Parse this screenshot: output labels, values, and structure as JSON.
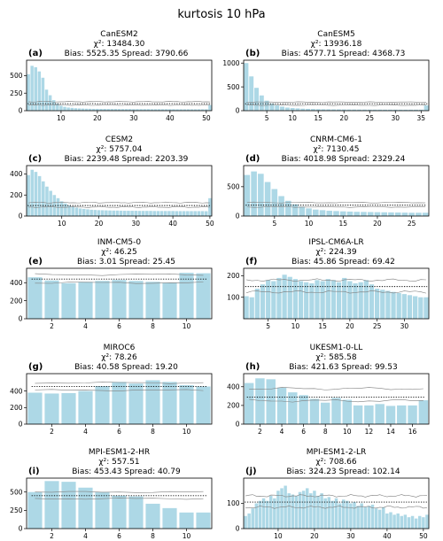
{
  "figure": {
    "title": "kurtosis 10 hPa"
  },
  "style": {
    "bar_color": "#add8e6",
    "line_color": "#000000",
    "band_color": "#7f7f7f"
  },
  "chart_data": [
    {
      "type": "bar",
      "label": "(a)",
      "model": "CanESM2",
      "chi2_text": "χ²: 13484.30",
      "stats_text": "Bias: 5525.35  Spread: 3790.66",
      "ylim": [
        0,
        720
      ],
      "yticks": [
        0,
        250,
        500
      ],
      "xlim": [
        0.5,
        51.5
      ],
      "xticks": [
        10,
        20,
        30,
        40,
        50
      ],
      "values": [
        520,
        640,
        620,
        560,
        470,
        300,
        220,
        150,
        100,
        70,
        55,
        45,
        40,
        35,
        32,
        30,
        28,
        27,
        26,
        26,
        25,
        25,
        24,
        24,
        24,
        23,
        23,
        23,
        23,
        22,
        22,
        22,
        22,
        22,
        21,
        21,
        21,
        21,
        21,
        21,
        21,
        20,
        20,
        20,
        20,
        20,
        20,
        20,
        20,
        20,
        80
      ],
      "expected": 100,
      "band": [
        80,
        128
      ]
    },
    {
      "type": "bar",
      "label": "(b)",
      "model": "CanESM5",
      "chi2_text": "χ²: 13936.18",
      "stats_text": "Bias: 4577.71  Spread: 4368.73",
      "ylim": [
        0,
        1060
      ],
      "yticks": [
        0,
        500,
        1000
      ],
      "xlim": [
        0.5,
        36.5
      ],
      "xticks": [
        5,
        10,
        15,
        20,
        25,
        30,
        35
      ],
      "values": [
        1000,
        720,
        480,
        320,
        210,
        150,
        110,
        85,
        65,
        55,
        48,
        42,
        38,
        35,
        32,
        30,
        29,
        28,
        27,
        26,
        25,
        25,
        24,
        24,
        23,
        23,
        23,
        22,
        22,
        22,
        21,
        21,
        21,
        21,
        21,
        110
      ],
      "expected": 145,
      "band": [
        115,
        180
      ]
    },
    {
      "type": "bar",
      "label": "(c)",
      "model": "CESM2",
      "chi2_text": "χ²: 5757.04",
      "stats_text": "Bias: 2239.48  Spread: 2203.39",
      "ylim": [
        0,
        480
      ],
      "yticks": [
        0,
        200,
        400
      ],
      "xlim": [
        0.5,
        50.5
      ],
      "xticks": [
        10,
        20,
        30,
        40,
        50
      ],
      "values": [
        390,
        440,
        420,
        380,
        330,
        280,
        240,
        200,
        170,
        140,
        120,
        100,
        90,
        80,
        72,
        68,
        64,
        60,
        58,
        56,
        55,
        54,
        53,
        52,
        52,
        51,
        50,
        50,
        50,
        50,
        49,
        49,
        49,
        49,
        48,
        48,
        48,
        48,
        48,
        48,
        47,
        47,
        47,
        47,
        47,
        47,
        47,
        47,
        46,
        170
      ],
      "expected": 100,
      "band": [
        85,
        128
      ]
    },
    {
      "type": "bar",
      "label": "(d)",
      "model": "CNRM-CM6-1",
      "chi2_text": "χ²: 7130.45",
      "stats_text": "Bias: 4018.98  Spread: 2329.24",
      "ylim": [
        0,
        860
      ],
      "yticks": [
        0,
        500
      ],
      "xlim": [
        0.5,
        27.5
      ],
      "xticks": [
        5,
        10,
        15,
        20,
        25
      ],
      "values": [
        700,
        760,
        720,
        580,
        460,
        340,
        260,
        200,
        160,
        130,
        110,
        100,
        90,
        85,
        80,
        76,
        72,
        70,
        68,
        66,
        64,
        62,
        60,
        58,
        56,
        56,
        56
      ],
      "expected": 185,
      "band": [
        155,
        230
      ]
    },
    {
      "type": "bar",
      "label": "(e)",
      "model": "INM-CM5-0",
      "chi2_text": "χ²: 46.25",
      "stats_text": "Bias: 3.01  Spread: 25.45",
      "ylim": [
        0,
        560
      ],
      "yticks": [
        0,
        200,
        400
      ],
      "xlim": [
        0.5,
        11.5
      ],
      "xticks": [
        2,
        4,
        6,
        8,
        10
      ],
      "values": [
        460,
        425,
        395,
        410,
        420,
        430,
        420,
        410,
        400,
        510,
        505
      ],
      "expected": 440,
      "band": [
        400,
        490
      ]
    },
    {
      "type": "bar",
      "label": "(f)",
      "model": "IPSL-CM6A-LR",
      "chi2_text": "χ²: 224.39",
      "stats_text": "Bias: 45.86  Spread: 69.42",
      "ylim": [
        0,
        235
      ],
      "yticks": [
        100,
        200
      ],
      "xlim": [
        0.5,
        34.5
      ],
      "xticks": [
        5,
        10,
        15,
        20,
        25,
        30
      ],
      "values": [
        105,
        100,
        140,
        160,
        180,
        175,
        190,
        205,
        195,
        185,
        175,
        170,
        165,
        180,
        175,
        185,
        180,
        170,
        190,
        175,
        165,
        170,
        180,
        160,
        140,
        135,
        130,
        125,
        120,
        115,
        110,
        105,
        100,
        100
      ],
      "expected": 150,
      "band": [
        125,
        180
      ]
    },
    {
      "type": "bar",
      "label": "(g)",
      "model": "MIROC6",
      "chi2_text": "χ²: 78.26",
      "stats_text": "Bias: 40.58  Spread: 19.20",
      "ylim": [
        0,
        610
      ],
      "yticks": [
        0,
        200,
        400
      ],
      "xlim": [
        0.5,
        11.5
      ],
      "xticks": [
        2,
        4,
        6,
        8,
        10
      ],
      "values": [
        380,
        370,
        375,
        400,
        460,
        510,
        490,
        530,
        510,
        470,
        455
      ],
      "expected": 455,
      "band": [
        410,
        500
      ]
    },
    {
      "type": "bar",
      "label": "(h)",
      "model": "UKESM1-0-LL",
      "chi2_text": "χ²: 585.58",
      "stats_text": "Bias: 421.63  Spread: 99.53",
      "ylim": [
        0,
        540
      ],
      "yticks": [
        0,
        200,
        400
      ],
      "xlim": [
        0.5,
        17.5
      ],
      "xticks": [
        2,
        4,
        6,
        8,
        10,
        12,
        14,
        16
      ],
      "values": [
        440,
        490,
        480,
        390,
        340,
        310,
        270,
        230,
        280,
        260,
        200,
        200,
        215,
        195,
        200,
        200,
        255
      ],
      "expected": 290,
      "band": [
        250,
        380
      ]
    },
    {
      "type": "bar",
      "label": "(i)",
      "model": "MPI-ESM1-2-HR",
      "chi2_text": "χ²: 557.51",
      "stats_text": "Bias: 453.43  Spread: 40.79",
      "ylim": [
        0,
        690
      ],
      "yticks": [
        0,
        250,
        500
      ],
      "xlim": [
        0.5,
        11.5
      ],
      "xticks": [
        2,
        4,
        6,
        8,
        10
      ],
      "values": [
        500,
        650,
        640,
        560,
        500,
        450,
        440,
        340,
        280,
        220,
        220
      ],
      "expected": 450,
      "band": [
        410,
        500
      ]
    },
    {
      "type": "bar",
      "label": "(j)",
      "model": "MPI-ESM1-2-LR",
      "chi2_text": "χ²: 708.66",
      "stats_text": "Bias: 324.23  Spread: 102.14",
      "ylim": [
        0,
        200
      ],
      "yticks": [
        0,
        100
      ],
      "xlim": [
        0.5,
        51.5
      ],
      "xticks": [
        10,
        20,
        30,
        40,
        50
      ],
      "values": [
        50,
        60,
        80,
        100,
        110,
        120,
        110,
        130,
        120,
        150,
        160,
        170,
        140,
        135,
        130,
        145,
        150,
        160,
        140,
        150,
        130,
        140,
        120,
        125,
        110,
        120,
        100,
        115,
        110,
        100,
        105,
        90,
        100,
        85,
        90,
        95,
        80,
        75,
        85,
        60,
        65,
        55,
        60,
        50,
        55,
        45,
        50,
        40,
        50,
        45,
        55
      ],
      "expected": 105,
      "band": [
        85,
        130
      ]
    }
  ]
}
